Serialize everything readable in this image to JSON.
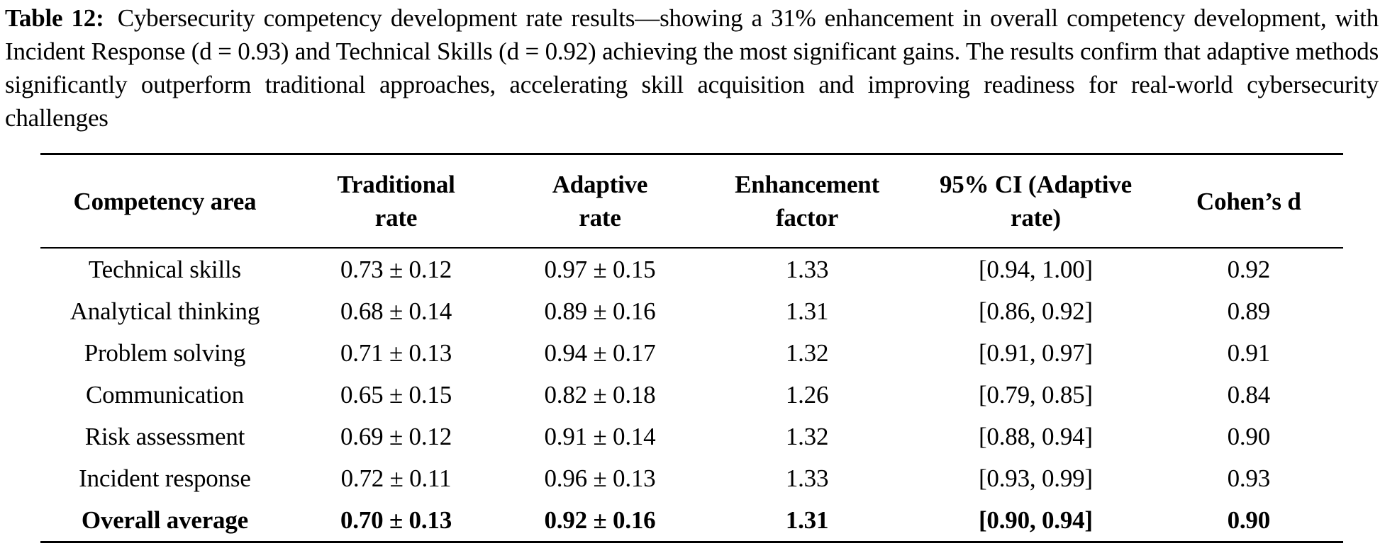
{
  "colors": {
    "text": "#000000",
    "background": "#ffffff",
    "rule": "#000000"
  },
  "caption": {
    "label": "Table 12:",
    "text": "Cybersecurity competency development rate results—showing a 31% enhancement in overall competency development, with Incident Response (d = 0.93) and Technical Skills (d = 0.92) achieving the most significant gains. The results confirm that adaptive methods significantly outperform traditional approaches, accelerating skill acquisition and improving readiness for real-world cybersecurity challenges"
  },
  "table": {
    "headers": [
      "Competency area",
      "Traditional\nrate",
      "Adaptive\nrate",
      "Enhancement\nfactor",
      "95% CI (Adaptive\nrate)",
      "Cohen’s d"
    ],
    "rows": [
      [
        "Technical skills",
        "0.73 ± 0.12",
        "0.97 ± 0.15",
        "1.33",
        "[0.94, 1.00]",
        "0.92"
      ],
      [
        "Analytical thinking",
        "0.68 ± 0.14",
        "0.89 ± 0.16",
        "1.31",
        "[0.86, 0.92]",
        "0.89"
      ],
      [
        "Problem solving",
        "0.71 ± 0.13",
        "0.94 ± 0.17",
        "1.32",
        "[0.91, 0.97]",
        "0.91"
      ],
      [
        "Communication",
        "0.65 ± 0.15",
        "0.82 ± 0.18",
        "1.26",
        "[0.79, 0.85]",
        "0.84"
      ],
      [
        "Risk assessment",
        "0.69 ± 0.12",
        "0.91 ± 0.14",
        "1.32",
        "[0.88, 0.94]",
        "0.90"
      ],
      [
        "Incident response",
        "0.72 ± 0.11",
        "0.96 ± 0.13",
        "1.33",
        "[0.93, 0.99]",
        "0.93"
      ],
      [
        "Overall average",
        "0.70 ± 0.13",
        "0.92 ± 0.16",
        "1.31",
        "[0.90, 0.94]",
        "0.90"
      ]
    ]
  }
}
